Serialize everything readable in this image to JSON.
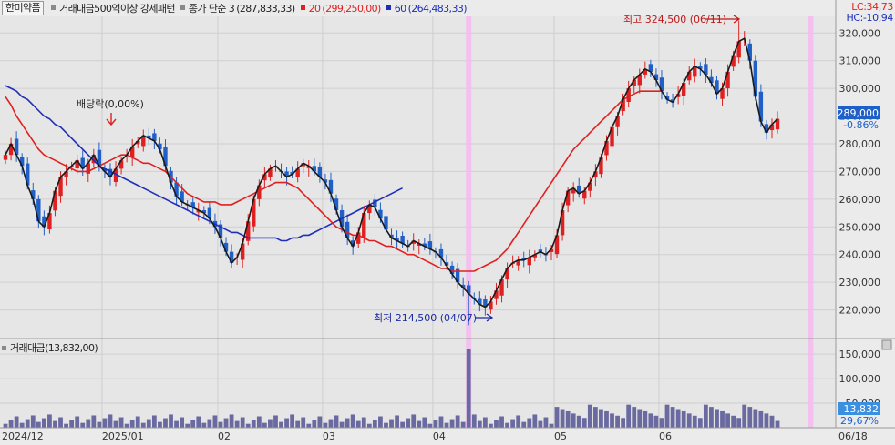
{
  "window": {
    "stock_name": "한미약품",
    "indicator": "거래대금500억이상 강세패턴",
    "ma_legend": [
      {
        "label": "종가 단순 3",
        "values": "(287,833,33)",
        "color": "#1a1a1a"
      },
      {
        "label": "20",
        "values": "(299,250,00)",
        "color": "#e02020"
      },
      {
        "label": "60",
        "values": "(264,483,33)",
        "color": "#1f2fb8"
      }
    ],
    "lc_label": "LC:34,73",
    "hc_label": "HC:-10,94",
    "current_price": "289,000",
    "change_pct": "-0.86%",
    "volume_legend": "거래대금(13,832,00)",
    "volume_current": "13,832",
    "volume_pct": "29,67%"
  },
  "annotations": {
    "dividend": "배당락(0,00%)",
    "high": "최고 324,500 (06/11)",
    "low": "최저 214,500 (04/07)"
  },
  "colors": {
    "up": "#e02020",
    "down": "#1f5fc8",
    "ma3": "#1a1a1a",
    "ma20": "#e02020",
    "ma60": "#1f2fb8",
    "volume": "#6a6aa0",
    "highlight": "#f4b8f0"
  },
  "chart_data": {
    "type": "candlestick",
    "x_axis_labels": [
      "2024/12",
      "2025/01",
      "02",
      "03",
      "04",
      "05",
      "06",
      "06/18"
    ],
    "price_axis": {
      "min": 210000,
      "max": 325000,
      "ticks": [
        "320,000",
        "310,000",
        "300,000",
        "290,000",
        "280,000",
        "270,000",
        "260,000",
        "250,000",
        "240,000",
        "230,000",
        "220,000"
      ]
    },
    "volume_axis": {
      "max": 180000,
      "ticks": [
        "150,000",
        "100,000",
        "50,000"
      ]
    },
    "sessions_per_month": [
      18,
      21,
      19,
      20,
      22,
      19,
      12
    ],
    "highlight_sessions": [
      84,
      146,
      176,
      182
    ],
    "series": [
      {
        "name": "종가 단순 3",
        "values": [
          276,
          280,
          276,
          272,
          265,
          260,
          252,
          250,
          255,
          263,
          268,
          270,
          272,
          274,
          271,
          273,
          276,
          272,
          270,
          268,
          271,
          274,
          276,
          279,
          281,
          283,
          282,
          281,
          278,
          272,
          266,
          261,
          259,
          258,
          257,
          256,
          255,
          253,
          250,
          246,
          241,
          237,
          239,
          244,
          252,
          260,
          265,
          269,
          271,
          272,
          270,
          268,
          269,
          271,
          273,
          272,
          270,
          268,
          266,
          262,
          256,
          250,
          246,
          243,
          248,
          255,
          258,
          257,
          253,
          249,
          246,
          245,
          244,
          243,
          245,
          244,
          243,
          242,
          241,
          239,
          236,
          233,
          230,
          228,
          226,
          224,
          222,
          221,
          223,
          227,
          231,
          235,
          237,
          238,
          238,
          239,
          240,
          241,
          240,
          242,
          247,
          256,
          263,
          264,
          262,
          263,
          266,
          270,
          275,
          281,
          286,
          290,
          296,
          300,
          303,
          305,
          307,
          306,
          303,
          299,
          296,
          295,
          298,
          302,
          306,
          308,
          307,
          305,
          302,
          298,
          300,
          306,
          312,
          317,
          318,
          310,
          297,
          288,
          284,
          287,
          289
        ]
      },
      {
        "name": "20",
        "values": [
          297,
          294,
          290,
          287,
          284,
          281,
          278,
          276,
          275,
          274,
          273,
          272,
          271,
          270,
          270,
          270,
          271,
          272,
          273,
          274,
          275,
          276,
          276,
          275,
          274,
          273,
          273,
          272,
          271,
          270,
          268,
          266,
          264,
          262,
          261,
          260,
          259,
          259,
          259,
          258,
          258,
          258,
          259,
          260,
          261,
          262,
          263,
          264,
          265,
          266,
          266,
          266,
          265,
          264,
          262,
          260,
          258,
          256,
          254,
          252,
          250,
          249,
          248,
          247,
          247,
          246,
          245,
          245,
          244,
          243,
          243,
          242,
          241,
          240,
          240,
          239,
          238,
          237,
          236,
          235,
          235,
          234,
          234,
          234,
          234,
          234,
          235,
          236,
          237,
          238,
          240,
          242,
          245,
          248,
          251,
          254,
          257,
          260,
          263,
          266,
          269,
          272,
          275,
          278,
          280,
          282,
          284,
          286,
          288,
          290,
          292,
          294,
          296,
          297,
          298,
          299,
          299,
          299,
          299,
          299
        ]
      },
      {
        "name": "60",
        "values": [
          301,
          300,
          299,
          297,
          296,
          294,
          292,
          290,
          289,
          287,
          286,
          284,
          282,
          280,
          278,
          276,
          274,
          272,
          271,
          270,
          269,
          268,
          267,
          266,
          265,
          264,
          263,
          262,
          261,
          260,
          259,
          258,
          257,
          256,
          255,
          254,
          253,
          252,
          251,
          250,
          249,
          248,
          248,
          247,
          246,
          246,
          246,
          246,
          246,
          246,
          245,
          245,
          246,
          246,
          247,
          247,
          248,
          249,
          250,
          251,
          252,
          253,
          254,
          255,
          256,
          257,
          258,
          259,
          260,
          261,
          262,
          263,
          264
        ]
      }
    ]
  }
}
